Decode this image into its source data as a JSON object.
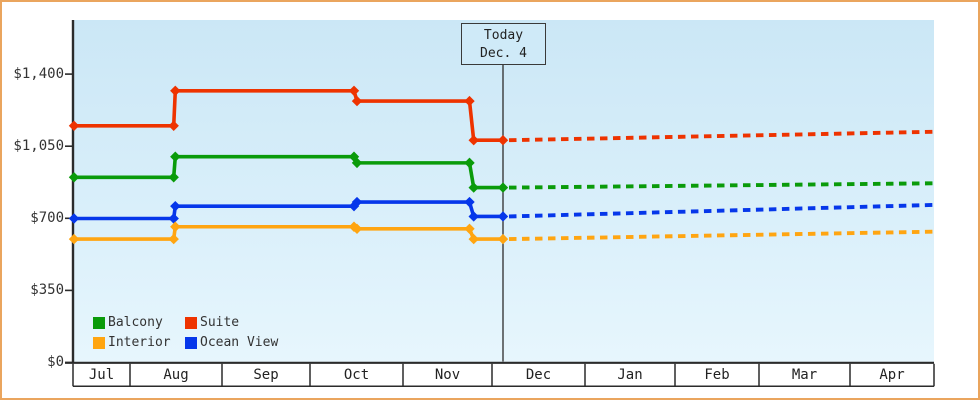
{
  "window": {
    "frame_border_color": "#eaa55e",
    "axis_color": "#2b2b2b",
    "today_line_color": "#3a3a3a",
    "today_box_fill": "#cfeaf8"
  },
  "y_axis": {
    "tick_labels": [
      "$0",
      "$350",
      "$700",
      "$1,050",
      "$1,400"
    ],
    "tick_values": [
      0,
      350,
      700,
      1050,
      1400
    ]
  },
  "x_axis": {
    "month_labels": [
      "Jul",
      "Aug",
      "Sep",
      "Oct",
      "Nov",
      "Dec",
      "Jan",
      "Feb",
      "Mar",
      "Apr"
    ]
  },
  "today_marker": {
    "line1": "Today",
    "line2": "Dec. 4"
  },
  "legend": {
    "items": [
      {
        "label": "Balcony",
        "color": "#0a9b0a"
      },
      {
        "label": "Suite",
        "color": "#ee3300"
      },
      {
        "label": "Interior",
        "color": "#ffa511"
      },
      {
        "label": "Ocean View",
        "color": "#0637ea"
      }
    ]
  },
  "chart_data": {
    "type": "line",
    "title": "",
    "xlabel": "",
    "ylabel": "",
    "x_categories": [
      "Jul",
      "Aug",
      "Sep",
      "Oct",
      "Nov",
      "Dec",
      "Jan",
      "Feb",
      "Mar",
      "Apr"
    ],
    "ylim": [
      0,
      1400
    ],
    "y_ticks": [
      0,
      350,
      700,
      1050,
      1400
    ],
    "grid": false,
    "legend_position": "bottom-left",
    "today": "Dec. 4",
    "note": "Solid stepped lines with diamond markers show price history Jul through Dec 4; dotted lines show projected prices after today.",
    "series": [
      {
        "name": "Suite",
        "color": "#ee3300",
        "history": [
          {
            "from": "Jul",
            "to": "mid-Aug",
            "price": 1149
          },
          {
            "from": "mid-Aug",
            "to": "mid-Oct",
            "price": 1319
          },
          {
            "from": "mid-Oct",
            "to": "late Nov",
            "price": 1269
          },
          {
            "from": "late Nov",
            "to": "Dec 4",
            "price": 1079
          }
        ],
        "forecast": {
          "from": "Dec 4",
          "start_price": 1079,
          "to": "Apr",
          "end_price": 1120
        }
      },
      {
        "name": "Balcony",
        "color": "#0a9b0a",
        "history": [
          {
            "from": "Jul",
            "to": "mid-Aug",
            "price": 899
          },
          {
            "from": "mid-Aug",
            "to": "mid-Oct",
            "price": 999
          },
          {
            "from": "mid-Oct",
            "to": "late Nov",
            "price": 969
          },
          {
            "from": "late Nov",
            "to": "Dec 4",
            "price": 849
          }
        ],
        "forecast": {
          "from": "Dec 4",
          "start_price": 849,
          "to": "Apr",
          "end_price": 870
        }
      },
      {
        "name": "Ocean View",
        "color": "#0637ea",
        "history": [
          {
            "from": "Jul",
            "to": "mid-Aug",
            "price": 699
          },
          {
            "from": "mid-Aug",
            "to": "mid-Oct",
            "price": 759
          },
          {
            "from": "mid-Oct",
            "to": "late Nov",
            "price": 779
          },
          {
            "from": "late Nov",
            "to": "Dec 4",
            "price": 709
          }
        ],
        "forecast": {
          "from": "Dec 4",
          "start_price": 709,
          "to": "Apr",
          "end_price": 765
        }
      },
      {
        "name": "Interior",
        "color": "#ffa511",
        "history": [
          {
            "from": "Jul",
            "to": "mid-Aug",
            "price": 599
          },
          {
            "from": "mid-Aug",
            "to": "mid-Oct",
            "price": 659
          },
          {
            "from": "mid-Oct",
            "to": "late Nov",
            "price": 649
          },
          {
            "from": "late Nov",
            "to": "Dec 4",
            "price": 599
          }
        ],
        "forecast": {
          "from": "Dec 4",
          "start_price": 599,
          "to": "Apr",
          "end_price": 635
        }
      }
    ]
  }
}
